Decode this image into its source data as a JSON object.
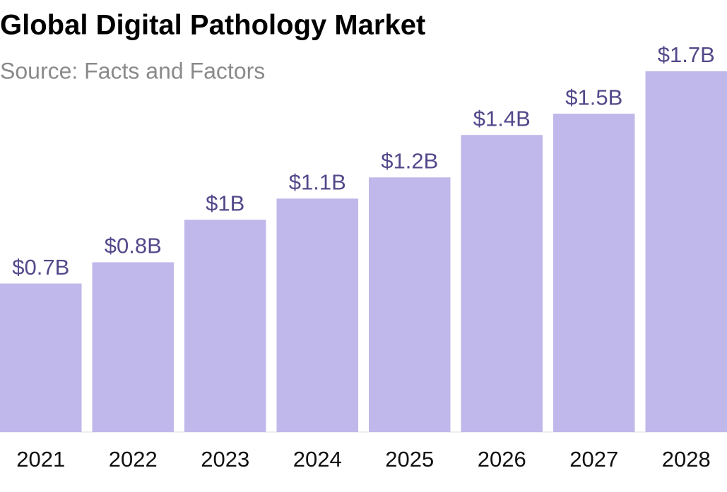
{
  "chart_data": {
    "type": "bar",
    "title": "Global Digital Pathology Market",
    "subtitle": "Source: Facts and Factors",
    "categories": [
      "2021",
      "2022",
      "2023",
      "2024",
      "2025",
      "2026",
      "2027",
      "2028"
    ],
    "values": [
      0.7,
      0.8,
      1,
      1.1,
      1.2,
      1.4,
      1.5,
      1.7
    ],
    "value_labels": [
      "$0.7B",
      "$0.8B",
      "$1B",
      "$1.1B",
      "$1.2B",
      "$1.4B",
      "$1.5B",
      "$1.7B"
    ],
    "color": "#c0b8ea"
  }
}
